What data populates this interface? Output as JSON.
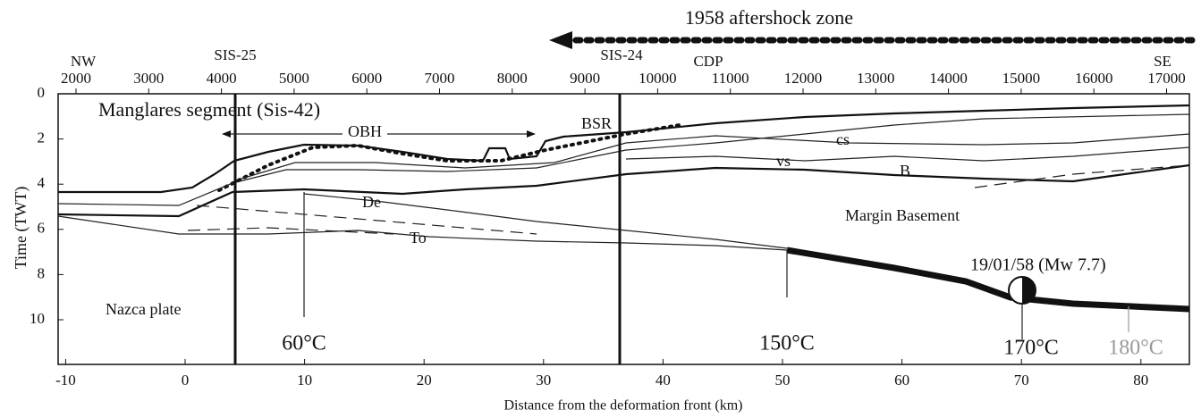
{
  "title": "1958 aftershock zone",
  "top_axis": {
    "left_end": "NW",
    "right_end": "SE",
    "label": "CDP",
    "ticks": [
      2000,
      3000,
      4000,
      5000,
      6000,
      7000,
      8000,
      9000,
      10000,
      11000,
      12000,
      13000,
      14000,
      15000,
      16000,
      17000
    ]
  },
  "left_axis": {
    "label": "Time (TWT)",
    "ticks": [
      0,
      2,
      4,
      6,
      8,
      10
    ]
  },
  "bottom_axis": {
    "label": "Distance from the deformation front (km)",
    "ticks": [
      -10,
      0,
      10,
      20,
      30,
      40,
      50,
      60,
      70,
      80
    ]
  },
  "profiles": [
    "SIS-25",
    "SIS-24"
  ],
  "annotations": {
    "segment": "Manglares segment (Sis-42)",
    "obh": "OBH",
    "bsr": "BSR",
    "cs": "cs",
    "vs": "vs",
    "b": "B",
    "de": "De",
    "to": "To",
    "margin": "Margin Basement",
    "nazca": "Nazca plate",
    "earthquake": "19/01/58 (Mw 7.7)"
  },
  "temperatures": [
    "60°C",
    "150°C",
    "170°C",
    "180°C"
  ]
}
